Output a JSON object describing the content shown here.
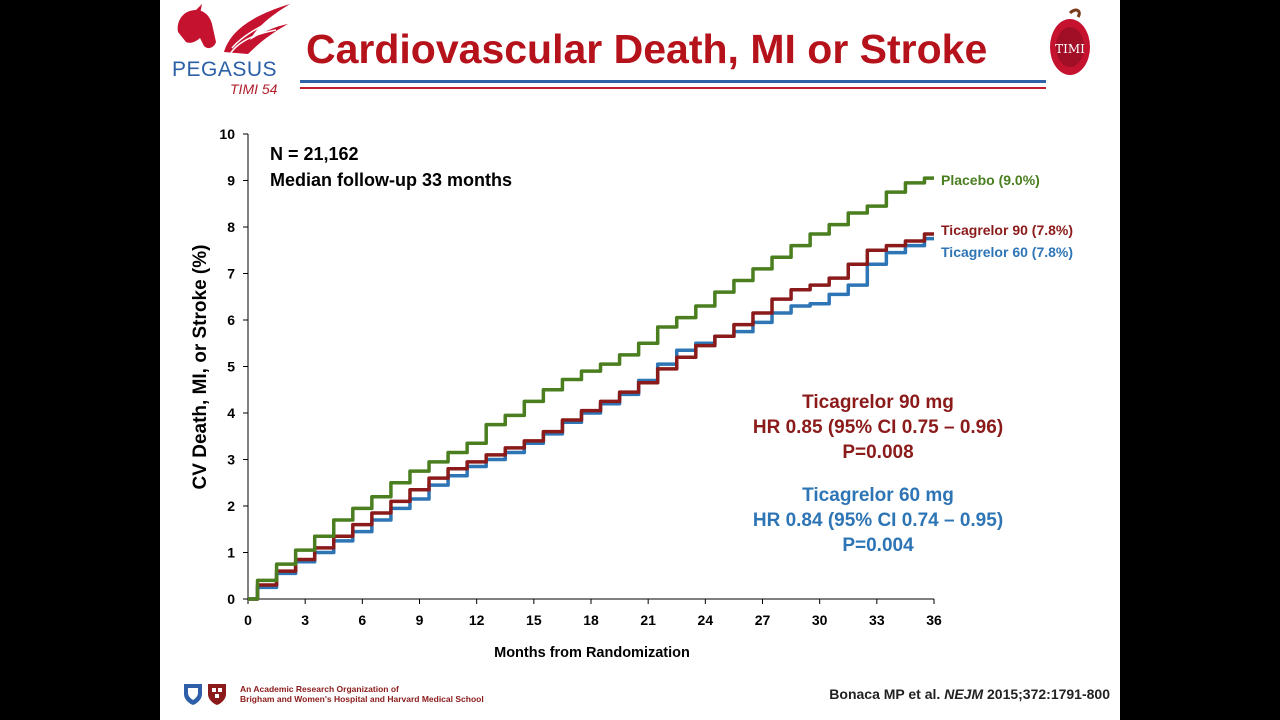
{
  "header": {
    "title": "Cardiovascular Death, MI or Stroke",
    "logo_left_name": "PEGASUS",
    "logo_left_sub": "TIMI 54",
    "logo_right_text": "TIMI"
  },
  "colors": {
    "title": "#b5121b",
    "placebo": "#4a7e1f",
    "ticagrelor90": "#8b1a1a",
    "ticagrelor60": "#2e75b6"
  },
  "chart_data": {
    "type": "line",
    "title": "",
    "xlabel": "Months from Randomization",
    "ylabel": "CV Death, MI, or Stroke (%)",
    "xlim": [
      0,
      36
    ],
    "ylim": [
      0,
      10
    ],
    "xticks": [
      "0",
      "3",
      "6",
      "9",
      "12",
      "15",
      "18",
      "21",
      "24",
      "27",
      "30",
      "33",
      "36"
    ],
    "yticks": [
      "0",
      "1",
      "2",
      "3",
      "4",
      "5",
      "6",
      "7",
      "8",
      "9",
      "10"
    ],
    "grid": false,
    "series": [
      {
        "name": "Placebo (9.0%)",
        "color": "#4a7e1f",
        "x": [
          0,
          1,
          2,
          3,
          4,
          5,
          6,
          7,
          8,
          9,
          10,
          11,
          12,
          13,
          14,
          15,
          16,
          17,
          18,
          19,
          20,
          21,
          22,
          23,
          24,
          25,
          26,
          27,
          28,
          29,
          30,
          31,
          32,
          33,
          34,
          35,
          36
        ],
        "y": [
          0,
          0.4,
          0.75,
          1.05,
          1.35,
          1.7,
          1.95,
          2.2,
          2.5,
          2.75,
          2.95,
          3.15,
          3.35,
          3.75,
          3.95,
          4.25,
          4.5,
          4.72,
          4.9,
          5.05,
          5.25,
          5.5,
          5.85,
          6.05,
          6.3,
          6.6,
          6.85,
          7.1,
          7.35,
          7.6,
          7.85,
          8.05,
          8.3,
          8.45,
          8.75,
          8.95,
          9.05
        ]
      },
      {
        "name": "Ticagrelor 90 (7.8%)",
        "color": "#8b1a1a",
        "x": [
          0,
          1,
          2,
          3,
          4,
          5,
          6,
          7,
          8,
          9,
          10,
          11,
          12,
          13,
          14,
          15,
          16,
          17,
          18,
          19,
          20,
          21,
          22,
          23,
          24,
          25,
          26,
          27,
          28,
          29,
          30,
          31,
          32,
          33,
          34,
          35,
          36
        ],
        "y": [
          0,
          0.3,
          0.6,
          0.85,
          1.1,
          1.35,
          1.6,
          1.85,
          2.1,
          2.35,
          2.6,
          2.8,
          2.95,
          3.1,
          3.25,
          3.4,
          3.6,
          3.85,
          4.05,
          4.25,
          4.45,
          4.65,
          4.95,
          5.2,
          5.45,
          5.65,
          5.9,
          6.15,
          6.45,
          6.65,
          6.75,
          6.9,
          7.2,
          7.5,
          7.6,
          7.7,
          7.85
        ]
      },
      {
        "name": "Ticagrelor 60 (7.8%)",
        "color": "#2e75b6",
        "x": [
          0,
          1,
          2,
          3,
          4,
          5,
          6,
          7,
          8,
          9,
          10,
          11,
          12,
          13,
          14,
          15,
          16,
          17,
          18,
          19,
          20,
          21,
          22,
          23,
          24,
          25,
          26,
          27,
          28,
          29,
          30,
          31,
          32,
          33,
          34,
          35,
          36
        ],
        "y": [
          0,
          0.25,
          0.55,
          0.8,
          1.0,
          1.25,
          1.45,
          1.7,
          1.95,
          2.15,
          2.45,
          2.65,
          2.85,
          3.0,
          3.15,
          3.35,
          3.55,
          3.8,
          4.0,
          4.2,
          4.4,
          4.7,
          5.05,
          5.35,
          5.5,
          5.65,
          5.75,
          5.95,
          6.15,
          6.3,
          6.35,
          6.55,
          6.75,
          7.2,
          7.45,
          7.6,
          7.75
        ]
      }
    ],
    "annotations": {
      "n_text": "N = 21,162",
      "followup_text": "Median follow-up 33 months",
      "t90_title": "Ticagrelor 90 mg",
      "t90_hr": "HR 0.85 (95% CI 0.75 – 0.96)",
      "t90_p": "P=0.008",
      "t60_title": "Ticagrelor 60 mg",
      "t60_hr": "HR 0.84 (95% CI 0.74 – 0.95)",
      "t60_p": "P=0.004"
    }
  },
  "footer": {
    "org_line1": "An Academic Research Organization of",
    "org_line2": "Brigham and Women's Hospital and Harvard Medical School",
    "citation_authors": "Bonaca MP et al.",
    "citation_journal": "NEJM",
    "citation_rest": "2015;372:1791-800"
  }
}
